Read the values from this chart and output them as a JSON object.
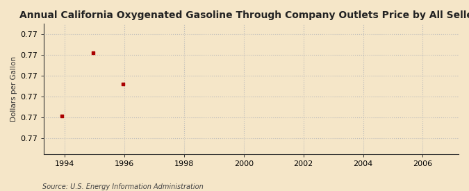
{
  "title": "Annual California Oxygenated Gasoline Through Company Outlets Price by All Sellers",
  "ylabel": "Dollars per Gallon",
  "source": "Source: U.S. Energy Information Administration",
  "x_data": [
    1993.9,
    1994.95,
    1995.95
  ],
  "y_data": [
    0.76923,
    0.77045,
    0.76985
  ],
  "point_color": "#aa0000",
  "background_color": "#f5e6c8",
  "grid_color": "#bbbbbb",
  "xlim": [
    1993.3,
    2007.2
  ],
  "ylim": [
    0.7685,
    0.771
  ],
  "xticks": [
    1994,
    1996,
    1998,
    2000,
    2002,
    2004,
    2006
  ],
  "ytick_values": [
    0.7688,
    0.7692,
    0.7696,
    0.77,
    0.7704,
    0.7708
  ],
  "ytick_labels": [
    "0.77",
    "0.77",
    "0.77",
    "0.77",
    "0.77",
    "0.77"
  ],
  "title_fontsize": 10,
  "label_fontsize": 7.5,
  "tick_fontsize": 8,
  "source_fontsize": 7
}
